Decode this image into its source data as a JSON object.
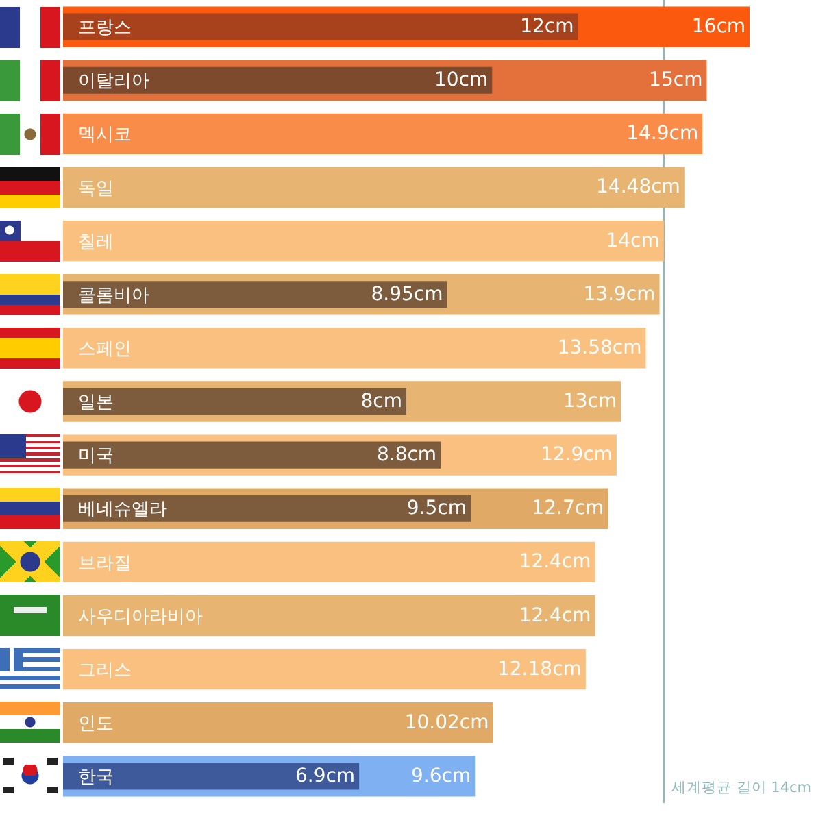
{
  "chart_data": {
    "type": "bar",
    "orientation": "horizontal",
    "categories": [
      "프랑스",
      "이탈리아",
      "멕시코",
      "독일",
      "칠레",
      "콜롬비아",
      "스페인",
      "일본",
      "미국",
      "베네슈엘라",
      "브라질",
      "사우디아라비아",
      "그리스",
      "인도",
      "한국"
    ],
    "series": [
      {
        "colors": [
          "#fb5a0e",
          "#e4703c",
          "#f98c48",
          "#e8b471",
          "#f9c07f",
          "#e8b471",
          "#f9c07f",
          "#e8b471",
          "#f9c07f",
          "#e0aa66",
          "#f9c07f",
          "#e8b471",
          "#f9c07f",
          "#e0aa66",
          "#7eb0f2"
        ],
        "values": [
          16,
          15,
          14.9,
          14.48,
          14,
          13.9,
          13.58,
          13,
          12.9,
          12.7,
          12.4,
          12.4,
          12.18,
          10.02,
          9.6
        ],
        "value_labels": [
          "16cm",
          "15cm",
          "14.9cm",
          "14.48cm",
          "14cm",
          "13.9cm",
          "13.58cm",
          "13cm",
          "12.9cm",
          "12.7cm",
          "12.4cm",
          "12.4cm",
          "12.18cm",
          "10.02cm",
          "9.6cm"
        ]
      },
      {
        "colors": [
          "#a8421c",
          "#7d4a2e",
          null,
          null,
          null,
          "#7d5c3e",
          null,
          "#7d5c3e",
          "#7d5c3e",
          "#7d5c3e",
          null,
          null,
          null,
          null,
          "#3e5a9a"
        ],
        "values": [
          12,
          10,
          null,
          null,
          null,
          8.95,
          null,
          8,
          8.8,
          9.5,
          null,
          null,
          null,
          null,
          6.9
        ],
        "value_labels": [
          "12cm",
          "10cm",
          null,
          null,
          null,
          "8.95cm",
          null,
          "8cm",
          "8.8cm",
          "9.5cm",
          null,
          null,
          null,
          null,
          "6.9cm"
        ]
      }
    ],
    "xlim": [
      0,
      17.5
    ],
    "ref_lines": [
      {
        "axis": "x",
        "value": 14,
        "label": "세계평균 길이 14cm",
        "color": "#8fb8bc"
      }
    ]
  }
}
